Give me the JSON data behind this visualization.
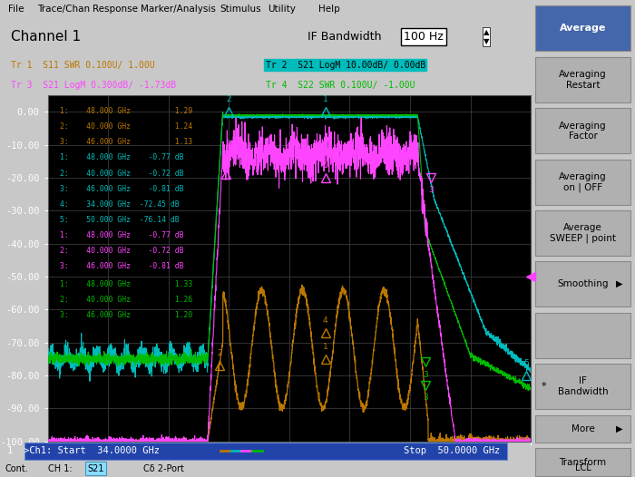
{
  "title": "Channel 1",
  "x_start": 34.0,
  "x_stop": 50.0,
  "y_min": -100.0,
  "y_max": 5.0,
  "y_ticks": [
    0.0,
    -10.0,
    -20.0,
    -30.0,
    -40.0,
    -50.0,
    -60.0,
    -70.0,
    -80.0,
    -90.0,
    -100.0
  ],
  "x_ticks": [
    34,
    36,
    38,
    40,
    42,
    44,
    46,
    48,
    50
  ],
  "bg_color": "#000000",
  "grid_color": "#3a3a3a",
  "tr1_color": "#00BBBB",
  "tr2_color": "#FF44FF",
  "tr3_color": "#BB7700",
  "tr4_color": "#00BB00",
  "tr1_label": "Tr 1  S11 SWR 0.100U/ 1.00U",
  "tr2_label": "Tr 2  S21 LogM 10.00dB/ 0.00dB",
  "tr3_label": "Tr 3  S21 LogM 0.300dB/ -1.73dB",
  "tr4_label": "Tr 4  S22 SWR 0.100U/ -1.00U",
  "header_bg": "#C8C8C8",
  "menubar_bg": "#C8C8C8",
  "plot_outer_bg": "#C8C8C8",
  "right_panel_bg": "#B8B8B8",
  "avg_btn_bg": "#4466AA",
  "status_bar_bg": "#C8C8C8"
}
